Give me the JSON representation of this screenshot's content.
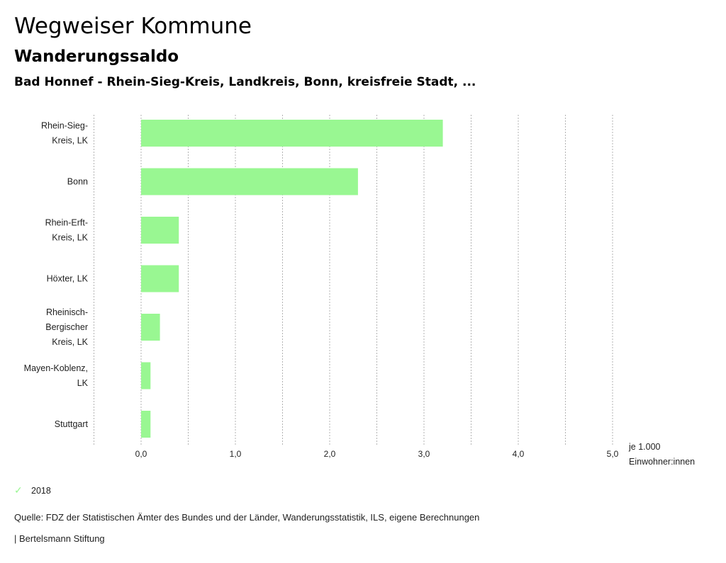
{
  "header": {
    "title": "Wegweiser Kommune",
    "subtitle": "Wanderungssaldo",
    "context": "Bad Honnef - Rhein-Sieg-Kreis, Landkreis, Bonn, kreisfreie Stadt, ..."
  },
  "chart_data": {
    "type": "bar",
    "orientation": "horizontal",
    "title": "Wanderungssaldo",
    "categories": [
      [
        "Rhein-Sieg-",
        "Kreis, LK"
      ],
      [
        "Bonn"
      ],
      [
        "Rhein-Erft-",
        "Kreis, LK"
      ],
      [
        "Höxter, LK"
      ],
      [
        "Rheinisch-",
        "Bergischer",
        "Kreis, LK"
      ],
      [
        "Mayen-Koblenz,",
        "LK"
      ],
      [
        "Stuttgart"
      ]
    ],
    "series": [
      {
        "name": "2018",
        "color": "#99f792",
        "values": [
          3.2,
          2.3,
          0.4,
          0.4,
          0.2,
          0.1,
          0.1
        ]
      }
    ],
    "xlim": [
      -0.5,
      5.0
    ],
    "xticks": [
      0,
      1,
      2,
      3,
      4,
      5
    ],
    "xtick_labels": [
      "0,0",
      "1,0",
      "2,0",
      "3,0",
      "4,0",
      "5,0"
    ],
    "xlabel": [
      "je 1.000",
      "Einwohner:innen"
    ],
    "ylabel": "",
    "grid": "vertical dashed every 0.5",
    "legend_position": "bottom-left"
  },
  "legend": {
    "icon": "check-icon",
    "label": "2018"
  },
  "footer": {
    "source": "Quelle: FDZ der Statistischen Ämter des Bundes und der Länder, Wanderungsstatistik, ILS, eigene Berechnungen",
    "brand": "| Bertelsmann Stiftung"
  }
}
